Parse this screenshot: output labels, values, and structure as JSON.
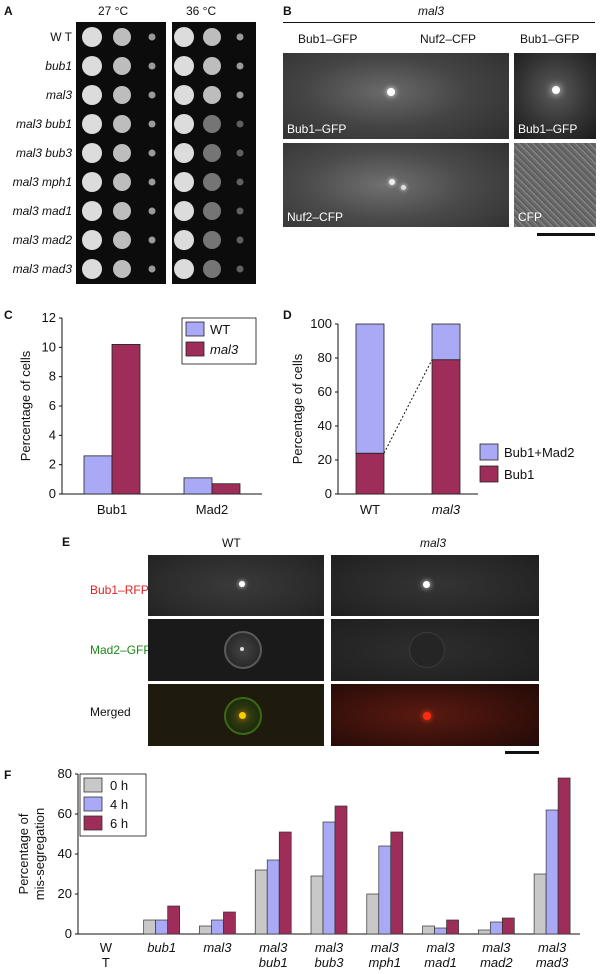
{
  "panel_letters": {
    "a": "A",
    "b": "B",
    "c": "C",
    "d": "D",
    "e": "E",
    "f": "F"
  },
  "panel_a": {
    "temps": [
      "27 °C",
      "36 °C"
    ],
    "strains": [
      "W T",
      "bub1",
      "mal3",
      "mal3 bub1",
      "mal3 bub3",
      "mal3 mph1",
      "mal3 mad1",
      "mal3 mad2",
      "mal3 mad3"
    ]
  },
  "panel_b": {
    "header": "mal3",
    "columns": [
      "Bub1–GFP",
      "Nuf2–CFP",
      "Bub1–GFP"
    ],
    "image_labels": [
      "Bub1–GFP",
      "Bub1–GFP",
      "Nuf2–CFP",
      "CFP"
    ]
  },
  "panel_e": {
    "columns": [
      "WT",
      "mal3"
    ],
    "rows": [
      {
        "label": "Bub1–RFP",
        "color": "#e02020"
      },
      {
        "label": "Mad2–GFP",
        "color": "#1a8a1a"
      },
      {
        "label": "Merged",
        "color": "#111111"
      }
    ]
  },
  "colors": {
    "wt_blue": "#a9a9f5",
    "mal3_maroon": "#9e2d5a",
    "gray": "#c8c8c8"
  },
  "chart_data": [
    {
      "id": "C",
      "type": "bar",
      "categories": [
        "Bub1",
        "Mad2"
      ],
      "series": [
        {
          "name": "WT",
          "values": [
            2.6,
            1.1
          ]
        },
        {
          "name": "mal3",
          "values": [
            10.2,
            0.7
          ]
        }
      ],
      "ylabel": "Percentage of cells",
      "ylim": [
        0,
        12
      ],
      "yticks": [
        0,
        2,
        4,
        6,
        8,
        10,
        12
      ],
      "legend": "top-right"
    },
    {
      "id": "D",
      "type": "bar",
      "stacked": true,
      "categories": [
        "WT",
        "mal3"
      ],
      "series": [
        {
          "name": "Bub1",
          "values": [
            24,
            79
          ]
        },
        {
          "name": "Bub1+Mad2",
          "values": [
            76,
            21
          ]
        }
      ],
      "ylabel": "Percentage of cells",
      "ylim": [
        0,
        100
      ],
      "yticks": [
        0,
        20,
        40,
        60,
        80,
        100
      ],
      "legend": "right"
    },
    {
      "id": "F",
      "type": "bar",
      "categories": [
        "W T",
        "bub1",
        "mal3",
        "mal3 bub1",
        "mal3 bub3",
        "mal3 mph1",
        "mal3 mad1",
        "mal3 mad2",
        "mal3 mad3"
      ],
      "series": [
        {
          "name": "0 h",
          "values": [
            0,
            7,
            4,
            32,
            29,
            20,
            4,
            2,
            30
          ]
        },
        {
          "name": "4 h",
          "values": [
            0,
            7,
            7,
            37,
            56,
            44,
            3,
            6,
            62
          ]
        },
        {
          "name": "6 h",
          "values": [
            0,
            14,
            11,
            51,
            64,
            51,
            7,
            8,
            78
          ]
        }
      ],
      "ylabel": "Percentage of mis-segregation",
      "ylim": [
        0,
        80
      ],
      "yticks": [
        0,
        20,
        40,
        60,
        80
      ],
      "legend": "top-left"
    }
  ]
}
